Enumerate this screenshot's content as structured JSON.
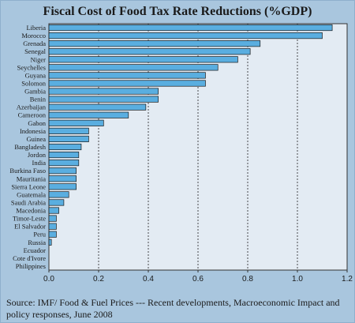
{
  "chart_data": {
    "type": "bar",
    "orientation": "horizontal",
    "title": "Fiscal Cost of Food Tax Rate Reductions (%GDP)",
    "categories": [
      "Liberia",
      "Morocco",
      "Grenada",
      "Senegal",
      "Niger",
      "Seychelles",
      "Guyana",
      "Solomon",
      "Gambia",
      "Benin",
      "Azerbaijan",
      "Cameroon",
      "Gabon",
      "Indonesia",
      "Guinea",
      "Bangladesh",
      "Jordon",
      "India",
      "Burkina Faso",
      "Mauritania",
      "Sierra Leone",
      "Guatemala",
      "Saudi Arabia",
      "Macedonia",
      "Timor-Leste",
      "El Salvador",
      "Peru",
      "Russia",
      "Ecuador",
      "Cote d'Ivore",
      "Philippines"
    ],
    "values": [
      1.14,
      1.1,
      0.85,
      0.81,
      0.76,
      0.68,
      0.63,
      0.63,
      0.44,
      0.44,
      0.39,
      0.32,
      0.22,
      0.16,
      0.16,
      0.13,
      0.12,
      0.12,
      0.11,
      0.11,
      0.11,
      0.08,
      0.06,
      0.04,
      0.03,
      0.03,
      0.03,
      0.01,
      0.0,
      0.0,
      0.0
    ],
    "xlim": [
      0,
      1.2
    ],
    "xticks": [
      "0.0",
      "0.2",
      "0.4",
      "0.6",
      "0.8",
      "1.0",
      "1.2"
    ],
    "grid": "vertical dashed",
    "bar_color": "#5aaee0",
    "plot_bg": "#e3ebf3"
  },
  "source": "Source: IMF/ Food & Fuel Prices --- Recent developments, Macroeconomic Impact and policy responses, June 2008"
}
